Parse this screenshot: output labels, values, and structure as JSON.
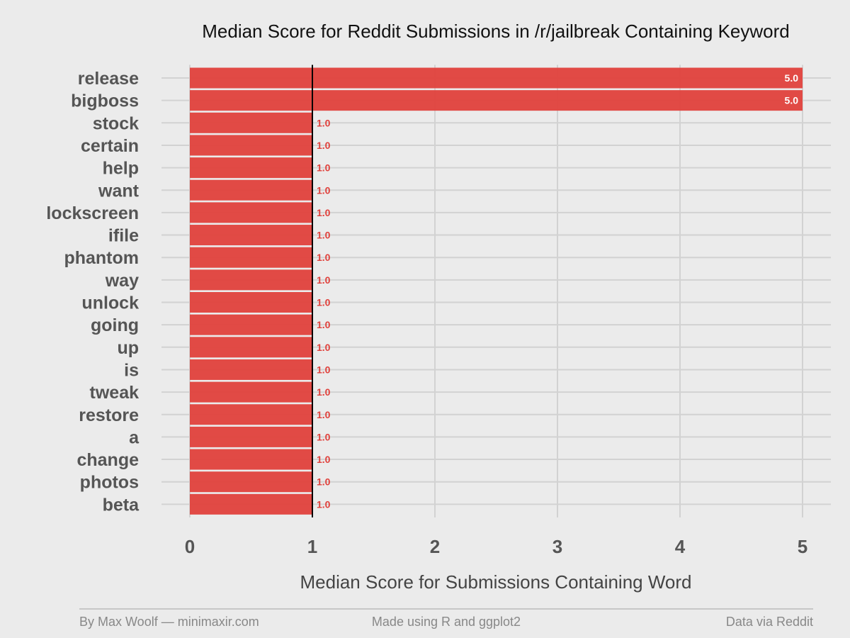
{
  "chart_data": {
    "type": "bar",
    "orientation": "horizontal",
    "title": "Median Score for Reddit Submissions in /r/jailbreak Containing Keyword",
    "xlabel": "Median Score for Submissions Containing Word",
    "ylabel": "",
    "categories": [
      "release",
      "bigboss",
      "stock",
      "certain",
      "help",
      "want",
      "lockscreen",
      "ifile",
      "phantom",
      "way",
      "unlock",
      "going",
      "up",
      "is",
      "tweak",
      "restore",
      "a",
      "change",
      "photos",
      "beta"
    ],
    "values": [
      5,
      5,
      1,
      1,
      1,
      1,
      1,
      1,
      1,
      1,
      1,
      1,
      1,
      1,
      1,
      1,
      1,
      1,
      1,
      1
    ],
    "data_labels": [
      "5.0",
      "5.0",
      "1.0",
      "1.0",
      "1.0",
      "1.0",
      "1.0",
      "1.0",
      "1.0",
      "1.0",
      "1.0",
      "1.0",
      "1.0",
      "1.0",
      "1.0",
      "1.0",
      "1.0",
      "1.0",
      "1.0",
      "1.0"
    ],
    "xlim": [
      0,
      5
    ],
    "x_ticks": [
      0,
      1,
      2,
      3,
      4,
      5
    ],
    "x_tick_labels": [
      "0",
      "1",
      "2",
      "3",
      "4",
      "5"
    ],
    "reference_line_x": 1,
    "grid": true,
    "legend": "none",
    "bar_color": "#e0413c",
    "reference_line_color": "#000000",
    "label_color_inside": "#ffffff",
    "label_color_outside": "#e0413c"
  },
  "footer": {
    "left": "By Max Woolf — minimaxir.com",
    "center": "Made using R and ggplot2",
    "right": "Data via Reddit"
  }
}
